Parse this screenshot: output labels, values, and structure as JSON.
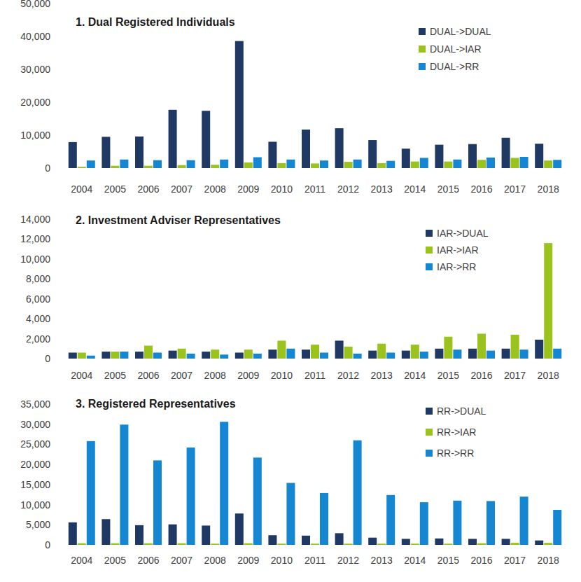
{
  "chart_data": [
    {
      "type": "bar",
      "title": "1. Dual Registered Individuals",
      "categories": [
        "2004",
        "2005",
        "2006",
        "2007",
        "2008",
        "2009",
        "2010",
        "2011",
        "2012",
        "2013",
        "2014",
        "2015",
        "2016",
        "2017",
        "2018"
      ],
      "series": [
        {
          "name": "DUAL->DUAL",
          "color": "#203864",
          "values": [
            7900,
            9500,
            9600,
            17700,
            17400,
            38600,
            8000,
            11700,
            12100,
            8500,
            5900,
            7100,
            7300,
            9200,
            7400
          ]
        },
        {
          "name": "DUAL->IAR",
          "color": "#9bc31e",
          "values": [
            400,
            700,
            700,
            900,
            1000,
            1700,
            1500,
            1400,
            1900,
            1500,
            2000,
            2000,
            2500,
            3100,
            2300
          ]
        },
        {
          "name": "DUAL->RR",
          "color": "#1486d2",
          "values": [
            2300,
            2600,
            2400,
            2400,
            2600,
            3300,
            2600,
            2300,
            2600,
            2200,
            3100,
            2600,
            3200,
            3400,
            2500
          ]
        }
      ],
      "ylim": [
        0,
        50000
      ],
      "yticks": [
        0,
        {
          "value": 10000,
          "label": "10,000"
        },
        {
          "value": 20000,
          "label": "20,000"
        },
        {
          "value": 30000,
          "label": "30,000"
        },
        {
          "value": 40000,
          "label": "40,000"
        },
        {
          "value": 50000,
          "label": "50,000"
        }
      ],
      "grid": false,
      "legend": "top-right"
    },
    {
      "type": "bar",
      "title": "2. Investment Adviser Representatives",
      "categories": [
        "2004",
        "2005",
        "2006",
        "2007",
        "2008",
        "2009",
        "2010",
        "2011",
        "2012",
        "2013",
        "2014",
        "2015",
        "2016",
        "2017",
        "2018"
      ],
      "series": [
        {
          "name": "IAR->DUAL",
          "color": "#203864",
          "values": [
            600,
            700,
            700,
            800,
            700,
            600,
            900,
            900,
            1800,
            800,
            800,
            1000,
            1000,
            1000,
            1900
          ]
        },
        {
          "name": "IAR->IAR",
          "color": "#9bc31e",
          "values": [
            600,
            700,
            1300,
            1000,
            900,
            900,
            1800,
            1400,
            1200,
            1500,
            1400,
            2200,
            2500,
            2400,
            11600
          ]
        },
        {
          "name": "IAR->RR",
          "color": "#1486d2",
          "values": [
            300,
            700,
            600,
            500,
            400,
            500,
            1000,
            600,
            500,
            600,
            700,
            900,
            800,
            900,
            1000
          ]
        }
      ],
      "ylim": [
        0,
        14000
      ],
      "yticks": [
        0,
        {
          "value": 2000,
          "label": "2,000"
        },
        {
          "value": 4000,
          "label": "4,000"
        },
        {
          "value": 6000,
          "label": "6,000"
        },
        {
          "value": 8000,
          "label": "8,000"
        },
        {
          "value": 10000,
          "label": "10,000"
        },
        {
          "value": 12000,
          "label": "12,000"
        },
        {
          "value": 14000,
          "label": "14,000"
        }
      ],
      "grid": false,
      "legend": "top-right"
    },
    {
      "type": "bar",
      "title": "3. Registered Representatives",
      "categories": [
        "2004",
        "2005",
        "2006",
        "2007",
        "2008",
        "2009",
        "2010",
        "2011",
        "2012",
        "2013",
        "2014",
        "2015",
        "2016",
        "2017",
        "2018"
      ],
      "series": [
        {
          "name": "RR->DUAL",
          "color": "#203864",
          "values": [
            5600,
            6400,
            4900,
            5100,
            4800,
            7800,
            2400,
            2300,
            2900,
            1800,
            1500,
            1600,
            1500,
            1500,
            1100
          ]
        },
        {
          "name": "RR->IAR",
          "color": "#9bc31e",
          "values": [
            400,
            400,
            400,
            400,
            300,
            400,
            300,
            300,
            300,
            300,
            300,
            300,
            400,
            500,
            500
          ]
        },
        {
          "name": "RR->RR",
          "color": "#1486d2",
          "values": [
            25800,
            29900,
            21000,
            24200,
            30600,
            21700,
            15400,
            12900,
            26000,
            12400,
            10600,
            11000,
            10900,
            12000,
            8700
          ]
        }
      ],
      "ylim": [
        0,
        35000
      ],
      "yticks": [
        0,
        {
          "value": 5000,
          "label": "5,000"
        },
        {
          "value": 10000,
          "label": "10,000"
        },
        {
          "value": 15000,
          "label": "15,000"
        },
        {
          "value": 20000,
          "label": "20,000"
        },
        {
          "value": 25000,
          "label": "25,000"
        },
        {
          "value": 30000,
          "label": "30,000"
        },
        {
          "value": 35000,
          "label": "35,000"
        }
      ],
      "grid": false,
      "legend": "top-right"
    }
  ]
}
